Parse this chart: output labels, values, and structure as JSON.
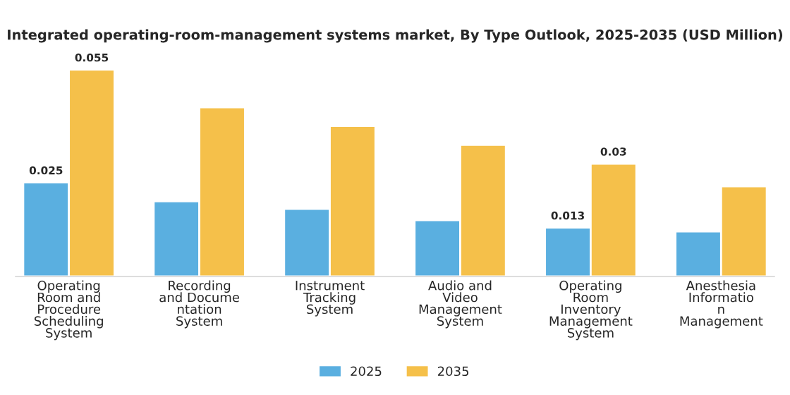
{
  "chart_data": {
    "type": "bar",
    "title": "Integrated operating-room-management systems market, By Type Outlook, 2025-2035 (USD Million)",
    "categories": [
      "Operating\nRoom and\nProcedure\nScheduling\nSystem",
      "Recording\nand Docume\nntation\nSystem",
      "Instrument\nTracking\nSystem",
      "Audio and\nVideo\nManagement\nSystem",
      "Operating\nRoom\nInventory\nManagement\nSystem",
      "Anesthesia\nInformatio\nn\nManagement"
    ],
    "series": [
      {
        "name": "2025",
        "color": "#5aafe0",
        "values": [
          0.025,
          0.02,
          0.018,
          0.015,
          0.013,
          0.012
        ],
        "value_labels": [
          "0.025",
          null,
          null,
          null,
          "0.013",
          null
        ]
      },
      {
        "name": "2035",
        "color": "#f5c04a",
        "values": [
          0.055,
          0.045,
          0.04,
          0.035,
          0.03,
          0.024
        ],
        "value_labels": [
          "0.055",
          null,
          null,
          null,
          "0.03",
          null
        ]
      }
    ],
    "legend": "bottom",
    "grid": false
  }
}
